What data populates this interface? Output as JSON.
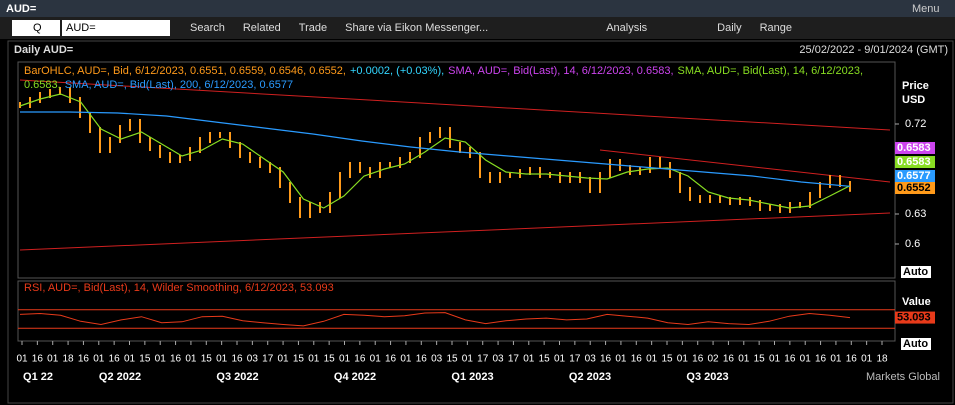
{
  "window": {
    "title": "AUD=",
    "menu": "Menu"
  },
  "toolbar": {
    "symbol": "AUD=",
    "search_icon": "Q",
    "search_box": "AUD=",
    "items": [
      "Search",
      "Related",
      "Trade",
      "Share via Eikon Messenger...",
      "Analysis",
      "Daily",
      "Range"
    ]
  },
  "chart_header": {
    "title": "Daily AUD=",
    "range": "25/02/2022 - 9/01/2024 (GMT)"
  },
  "chart_data": {
    "type": "line",
    "legend_text": [
      {
        "text": "BarOHLC, AUD=, Bid, 6/12/2023, 0.6551, 0.6559, 0.6546, 0.6552,",
        "color": "#ff9a1a"
      },
      {
        "text": "+0.0002, (+0.03%),",
        "color": "#33d6ff"
      },
      {
        "text": "SMA, AUD=, Bid(Last), 14, 6/12/2023, 0.6583,",
        "color": "#cc44ee"
      },
      {
        "text": "SMA, AUD=, Bid(Last), 14, 6/12/2023, 0.6583,",
        "color": "#88dd22"
      },
      {
        "text": "SMA, AUD=, Bid(Last), 200, 6/12/2023, 0.6577",
        "color": "#2a9bff"
      }
    ],
    "axis_label": "Price",
    "axis_unit": "USD",
    "auto": "Auto",
    "ylim": [
      0.566,
      0.782
    ],
    "yticks": [
      0.72,
      0.63,
      0.6
    ],
    "series": [
      {
        "name": "BarOHLC",
        "color": "#ff9a1a",
        "values": [
          0.739,
          0.744,
          0.749,
          0.752,
          0.754,
          0.744,
          0.729,
          0.714,
          0.694,
          0.704,
          0.716,
          0.722,
          0.704,
          0.696,
          0.689,
          0.684,
          0.686,
          0.694,
          0.704,
          0.709,
          0.709,
          0.699,
          0.689,
          0.684,
          0.679,
          0.674,
          0.659,
          0.644,
          0.629,
          0.639,
          0.634,
          0.649,
          0.669,
          0.679,
          0.674,
          0.669,
          0.679,
          0.679,
          0.684,
          0.689,
          0.704,
          0.709,
          0.714,
          0.699,
          0.694,
          0.689,
          0.669,
          0.664,
          0.669,
          0.669,
          0.672,
          0.674,
          0.669,
          0.669,
          0.664,
          0.669,
          0.664,
          0.654,
          0.669,
          0.682,
          0.676,
          0.672,
          0.674,
          0.684,
          0.679,
          0.669,
          0.654,
          0.646,
          0.644,
          0.646,
          0.644,
          0.642,
          0.644,
          0.641,
          0.636,
          0.637,
          0.634,
          0.639,
          0.639,
          0.649,
          0.659,
          0.666,
          0.66,
          0.6552
        ]
      },
      {
        "name": "SMA 14",
        "color": "#88dd22",
        "values": [
          0.738,
          0.745,
          0.75,
          0.742,
          0.715,
          0.705,
          0.712,
          0.7,
          0.688,
          0.694,
          0.705,
          0.7,
          0.686,
          0.672,
          0.645,
          0.636,
          0.648,
          0.668,
          0.675,
          0.68,
          0.692,
          0.706,
          0.702,
          0.684,
          0.672,
          0.67,
          0.67,
          0.668,
          0.666,
          0.665,
          0.672,
          0.675,
          0.676,
          0.668,
          0.652,
          0.646,
          0.644,
          0.64,
          0.636,
          0.638,
          0.648,
          0.6583
        ]
      },
      {
        "name": "SMA 200",
        "color": "#2a9bff",
        "values": [
          0.732,
          0.732,
          0.731,
          0.728,
          0.722,
          0.716,
          0.71,
          0.703,
          0.697,
          0.692,
          0.688,
          0.684,
          0.68,
          0.676,
          0.672,
          0.668,
          0.662,
          0.6577
        ]
      }
    ],
    "trendlines": [
      {
        "color": "#d02020",
        "from": [
          0,
          0.764
        ],
        "to": [
          87,
          0.714
        ]
      },
      {
        "color": "#d02020",
        "from": [
          58,
          0.694
        ],
        "to": [
          87,
          0.662
        ]
      },
      {
        "color": "#d02020",
        "from": [
          0,
          0.594
        ],
        "to": [
          87,
          0.631
        ]
      }
    ],
    "price_tags": [
      {
        "value": 0.6583,
        "color": "#cc44ee"
      },
      {
        "value": 0.6583,
        "color": "#88dd22"
      },
      {
        "value": 0.6577,
        "color": "#2a9bff"
      },
      {
        "value": 0.6552,
        "color": "#ff9a1a"
      }
    ],
    "rsi": {
      "legend": "RSI, AUD=, Bid(Last), 14, Wilder Smoothing, 6/12/2023, 53.093",
      "axis_label": "Value",
      "auto": "Auto",
      "color": "#e83a1a",
      "ylim": [
        0,
        100
      ],
      "levels": [
        70,
        30
      ],
      "values": [
        60,
        62,
        58,
        45,
        38,
        48,
        55,
        42,
        44,
        55,
        56,
        46,
        42,
        38,
        35,
        45,
        60,
        58,
        55,
        57,
        63,
        64,
        48,
        40,
        46,
        50,
        52,
        48,
        50,
        60,
        56,
        52,
        42,
        38,
        44,
        40,
        38,
        45,
        56,
        62,
        58,
        53.093
      ],
      "last_label": "53.093"
    },
    "day_labels": [
      "01",
      "16",
      "01",
      "18",
      "16",
      "01",
      "16",
      "01",
      "15",
      "01",
      "16",
      "01",
      "15",
      "01",
      "16",
      "03",
      "17",
      "01",
      "15",
      "01",
      "15",
      "01",
      "16",
      "01",
      "16",
      "01",
      "16",
      "03",
      "15",
      "01",
      "17",
      "03",
      "17",
      "01",
      "15",
      "01",
      "17",
      "03",
      "16",
      "01",
      "16",
      "01",
      "15",
      "01",
      "16",
      "02",
      "16",
      "01",
      "15",
      "01",
      "16",
      "01",
      "16",
      "01",
      "16",
      "01",
      "18"
    ],
    "quarter_labels": [
      "Q1 22",
      "Q2 2022",
      "Q3 2022",
      "Q4 2022",
      "Q1 2023",
      "Q2 2023",
      "Q3 2023"
    ],
    "watermark": "Markets Global"
  }
}
